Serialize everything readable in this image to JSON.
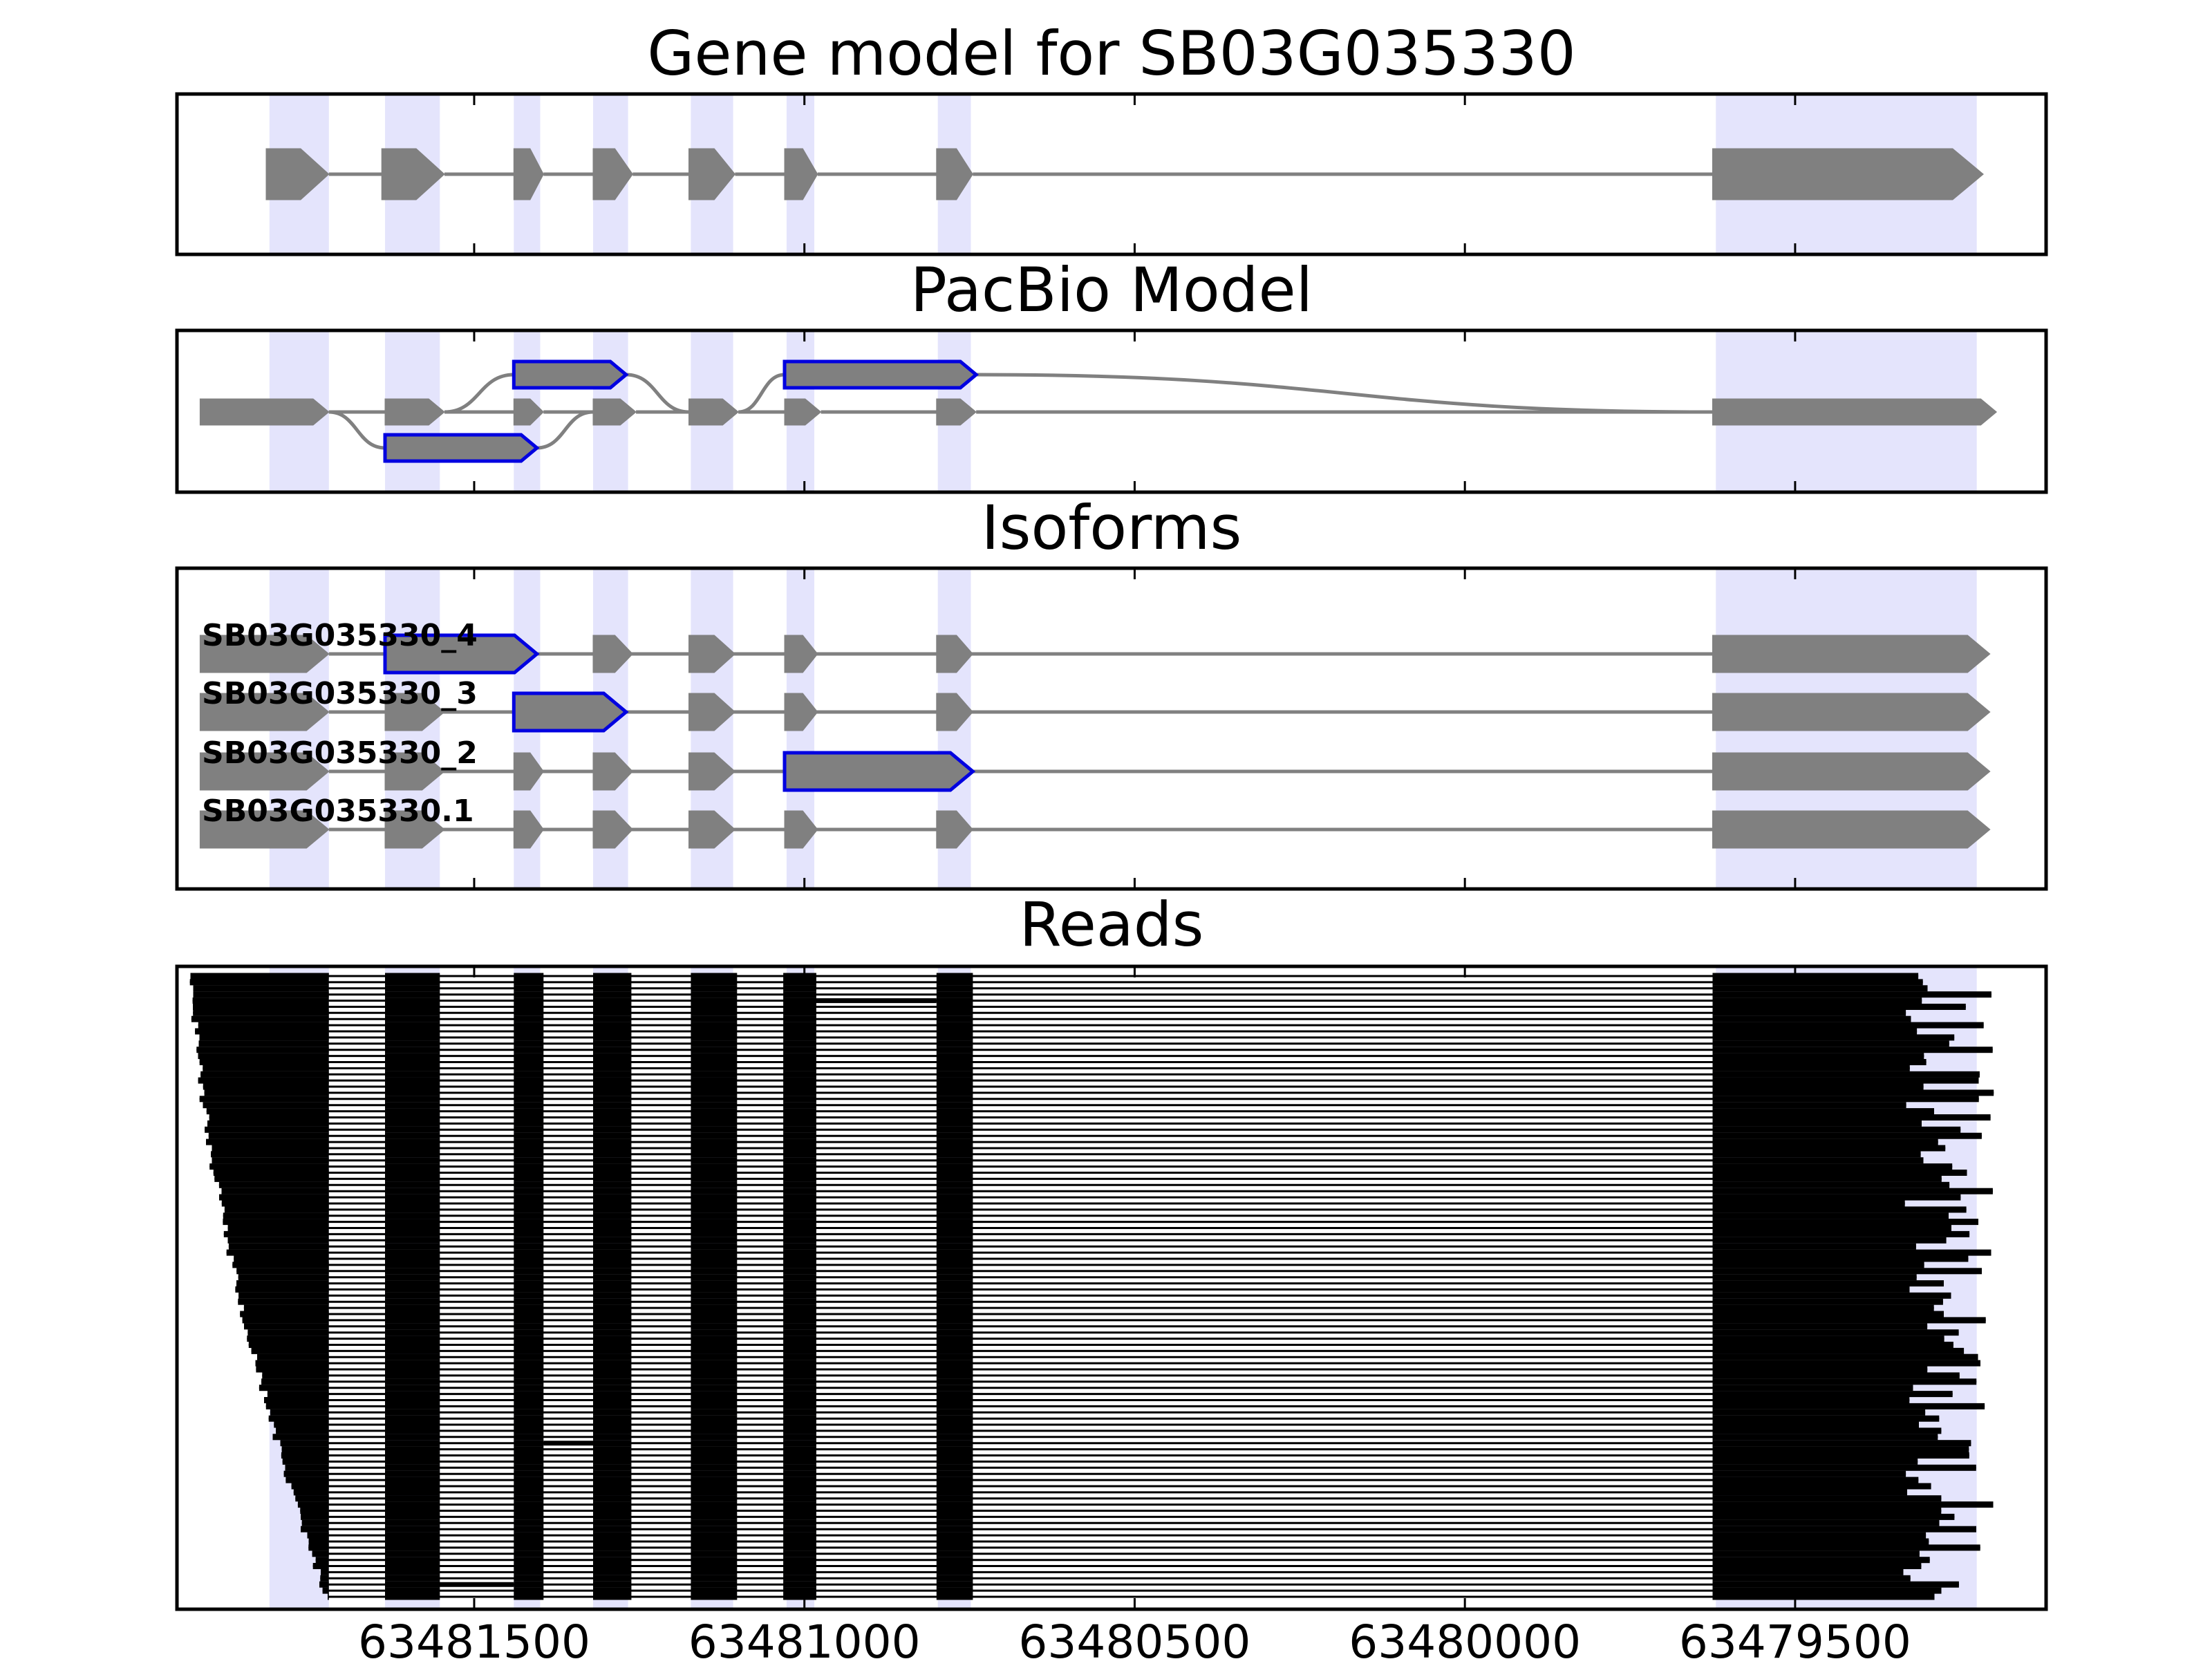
{
  "chart_data": {
    "type": "gene-structure",
    "gene_id": "SB03G035330",
    "x_axis": {
      "reversed": true,
      "xlim": [
        63481950,
        63479120
      ],
      "ticks": [
        63481500,
        63481000,
        63480500,
        63480000,
        63479500
      ],
      "tick_labels": [
        "63481500",
        "63481000",
        "63480500",
        "63480000",
        "63479500"
      ]
    },
    "colors": {
      "exon": "#808080",
      "intron": "#808080",
      "highlight_outline": "#0000e0",
      "exon_shade": "#e4e4fc",
      "read": "#000000"
    },
    "exons": [
      [
        63481810,
        63481720
      ],
      [
        63481635,
        63481552
      ],
      [
        63481440,
        63481400
      ],
      [
        63481320,
        63481267
      ],
      [
        63481172,
        63481108
      ],
      [
        63481027,
        63480985
      ],
      [
        63480798,
        63480748
      ],
      [
        63479620,
        63479225
      ]
    ],
    "panels": [
      {
        "title": "Gene model for SB03G035330",
        "tracks": [
          {
            "exons": [
              [
                63481815,
                63481720
              ],
              [
                63481640,
                63481545
              ],
              [
                63481440,
                63481395
              ],
              [
                63481320,
                63481260
              ],
              [
                63481175,
                63481105
              ],
              [
                63481030,
                63480980
              ],
              [
                63480800,
                63480745
              ],
              [
                63479625,
                63479215
              ]
            ],
            "highlight": []
          }
        ]
      },
      {
        "title": "PacBio Model",
        "tracks": [
          {
            "offset": 0,
            "exons": [
              [
                63481915,
                63481720
              ],
              [
                63481635,
                63481545
              ],
              [
                63481440,
                63481395
              ],
              [
                63481320,
                63481255
              ],
              [
                63481175,
                63481100
              ],
              [
                63481030,
                63480975
              ],
              [
                63480800,
                63480740
              ],
              [
                63479625,
                63479195
              ]
            ],
            "highlight": []
          },
          {
            "offset": 1,
            "exons": [
              [
                63481440,
                63481270
              ],
              [
                63481030,
                63480740
              ]
            ],
            "highlight": [
              0,
              1
            ]
          },
          {
            "offset": -1,
            "exons": [
              [
                63481635,
                63481405
              ]
            ],
            "highlight": [
              0
            ]
          }
        ]
      },
      {
        "title": "Isoforms",
        "tracks": [
          {
            "label": "SB03G035330_4",
            "exons": [
              [
                63481915,
                63481720
              ],
              [
                63481635,
                63481405
              ],
              [
                63481320,
                63481260
              ],
              [
                63481175,
                63481105
              ],
              [
                63481030,
                63480980
              ],
              [
                63480800,
                63480745
              ],
              [
                63479625,
                63479205
              ]
            ],
            "highlight": [
              1
            ]
          },
          {
            "label": "SB03G035330_3",
            "exons": [
              [
                63481915,
                63481720
              ],
              [
                63481635,
                63481545
              ],
              [
                63481440,
                63481270
              ],
              [
                63481175,
                63481105
              ],
              [
                63481030,
                63480980
              ],
              [
                63480800,
                63480745
              ],
              [
                63479625,
                63479205
              ]
            ],
            "highlight": [
              2
            ]
          },
          {
            "label": "SB03G035330_2",
            "exons": [
              [
                63481915,
                63481720
              ],
              [
                63481635,
                63481545
              ],
              [
                63481440,
                63481395
              ],
              [
                63481320,
                63481260
              ],
              [
                63481175,
                63481105
              ],
              [
                63481030,
                63480745
              ],
              [
                63479625,
                63479205
              ]
            ],
            "highlight": [
              5
            ]
          },
          {
            "label": "SB03G035330.1",
            "exons": [
              [
                63481915,
                63481720
              ],
              [
                63481635,
                63481545
              ],
              [
                63481440,
                63481395
              ],
              [
                63481320,
                63481260
              ],
              [
                63481175,
                63481105
              ],
              [
                63481030,
                63480980
              ],
              [
                63480800,
                63480745
              ],
              [
                63479625,
                63479205
              ]
            ],
            "highlight": []
          }
        ]
      },
      {
        "title": "Reads",
        "reads": {
          "count": 102,
          "first_exon_end": 63481720,
          "start_range": [
            63481925,
            63481725
          ],
          "end_range": [
            63479195,
            63479340
          ],
          "exon_blocks": [
            [
              63481635,
              63481552
            ],
            [
              63481440,
              63481395
            ],
            [
              63481320,
              63481262
            ],
            [
              63481172,
              63481102
            ],
            [
              63481032,
              63480982
            ],
            [
              63480800,
              63480745
            ]
          ],
          "last_exon_start": 63479625,
          "intron_retention": [
            {
              "read_index": 4,
              "range": [
                63480985,
                63480800
              ]
            },
            {
              "read_index": 76,
              "range": [
                63481395,
                63481320
              ]
            },
            {
              "read_index": 99,
              "range": [
                63481555,
                63481440
              ]
            }
          ]
        }
      }
    ]
  }
}
